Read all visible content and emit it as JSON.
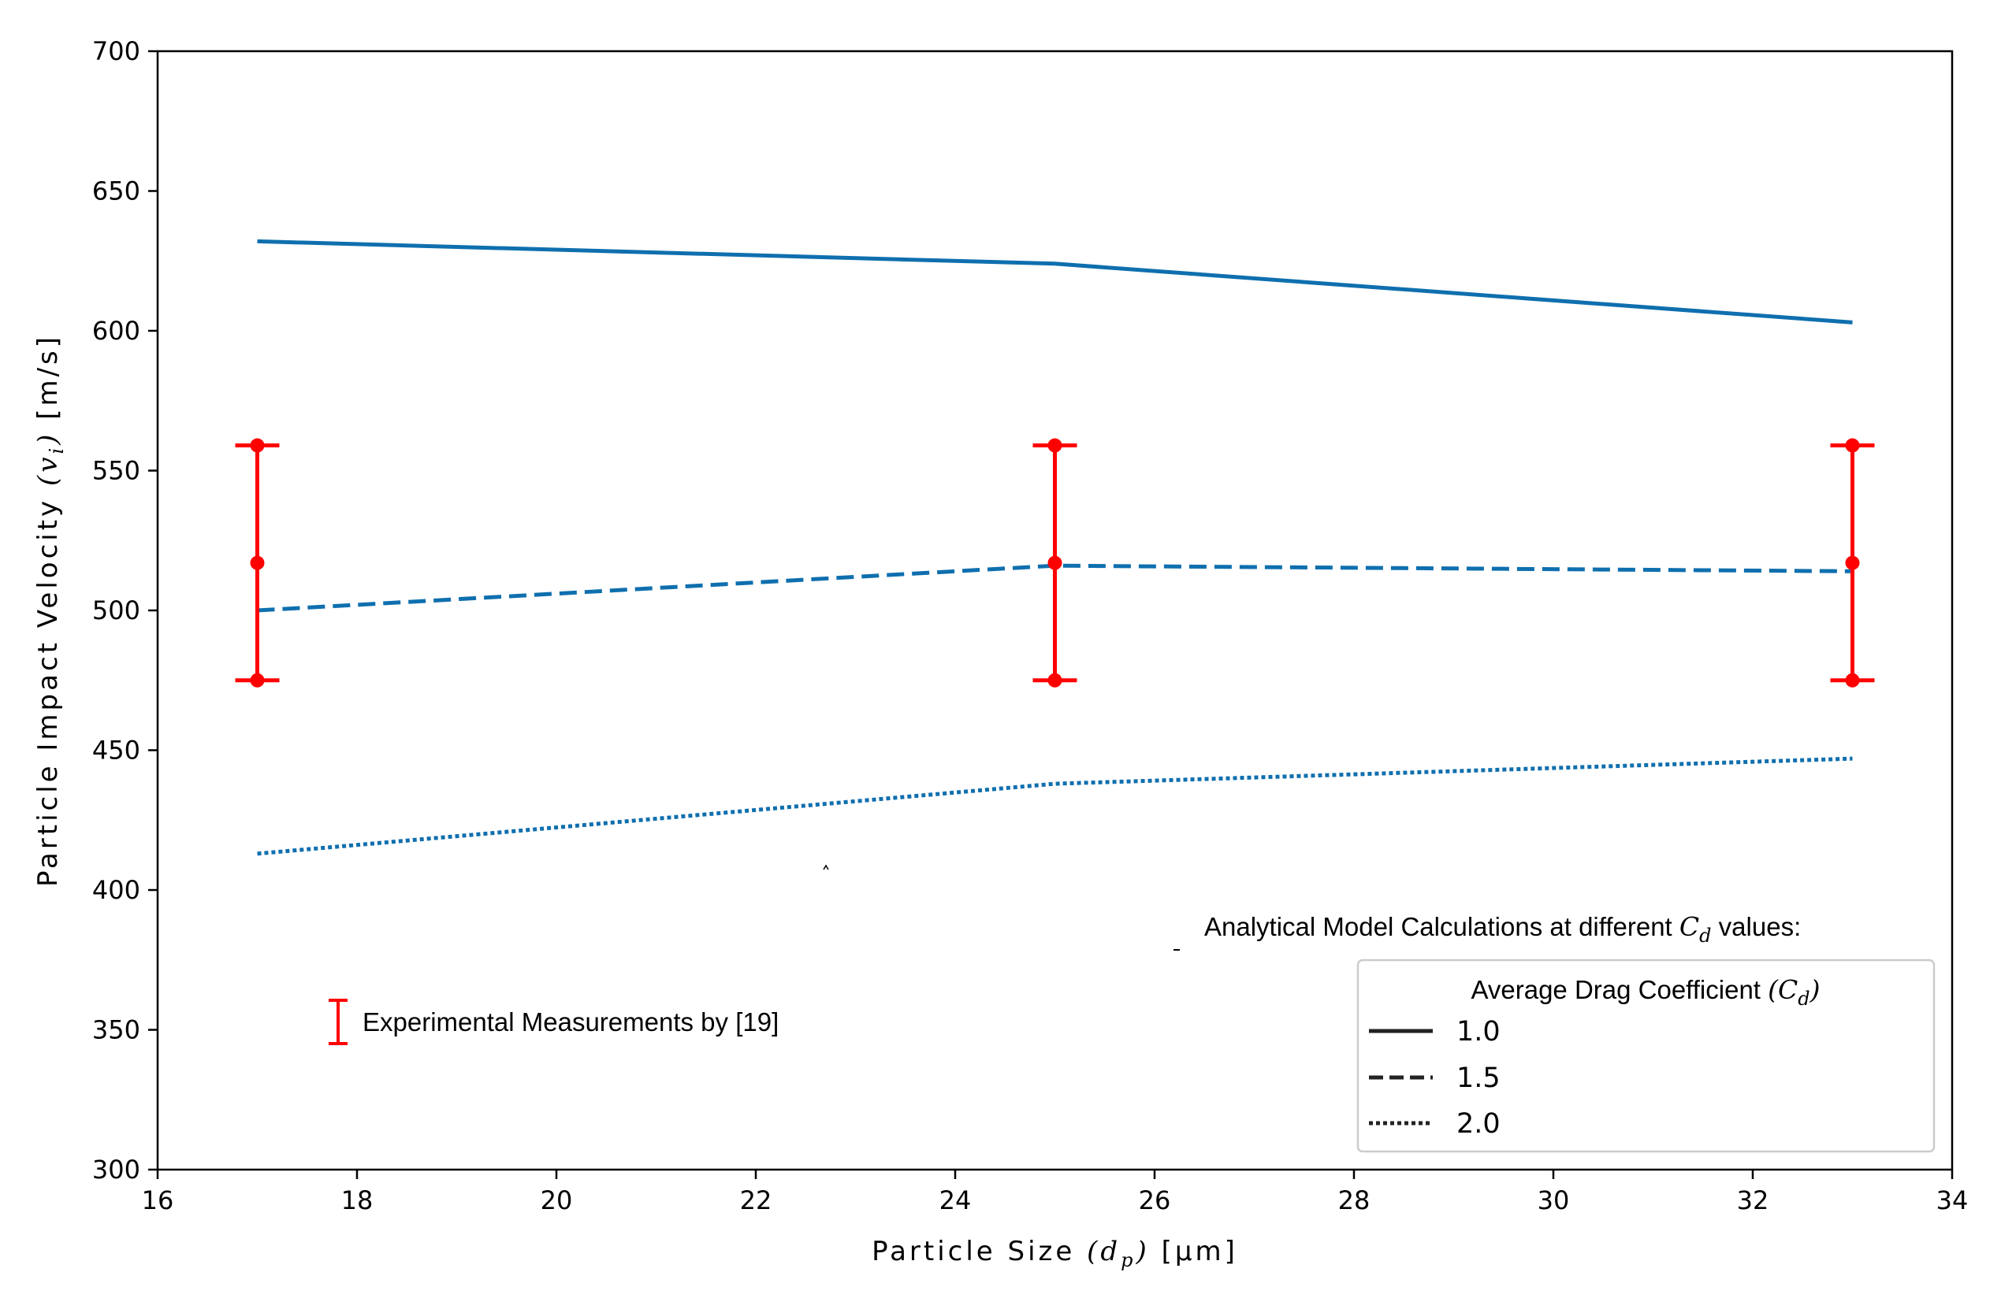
{
  "chart_data": {
    "type": "line",
    "xlabel": {
      "prefix": "Particle Size ",
      "math": "(d",
      "sub": "p",
      "close": ")",
      "unit": " [µm]"
    },
    "ylabel": {
      "prefix": "Particle Impact Velocity ",
      "math": "(v",
      "sub": "i",
      "close": ")",
      "unit": " [m/s]"
    },
    "xlim": [
      16,
      34
    ],
    "ylim": [
      300,
      700
    ],
    "xticks": [
      16,
      18,
      20,
      22,
      24,
      26,
      28,
      30,
      32,
      34
    ],
    "yticks": [
      300,
      350,
      400,
      450,
      500,
      550,
      600,
      650,
      700
    ],
    "series": [
      {
        "name": "1.0",
        "style": "solid",
        "color": "#0f6fae",
        "x": [
          17,
          25,
          33
        ],
        "y": [
          632,
          624,
          603
        ]
      },
      {
        "name": "1.5",
        "style": "dashed",
        "color": "#0f6fae",
        "x": [
          17,
          25,
          33
        ],
        "y": [
          500,
          516,
          514
        ]
      },
      {
        "name": "2.0",
        "style": "dotted",
        "color": "#0f6fae",
        "x": [
          17,
          25,
          33
        ],
        "y": [
          413,
          438,
          447
        ]
      }
    ],
    "errorbars": {
      "name": "Experimental Measurements by [19]",
      "color": "#ff0000",
      "x": [
        17,
        25,
        33
      ],
      "y": [
        517,
        517,
        517
      ],
      "low": [
        475,
        475,
        475
      ],
      "high": [
        559,
        559,
        559
      ]
    },
    "annotation": {
      "text": "Analytical Model Calculations at different ",
      "math": "C",
      "sub": "d",
      "suffix": " values:"
    },
    "legend": {
      "title": "Average Drag Coefficient ",
      "title_math": "(C",
      "title_sub": "d",
      "title_close": ")",
      "entries": [
        "1.0",
        "1.5",
        "2.0"
      ],
      "location": "lower-right"
    }
  }
}
